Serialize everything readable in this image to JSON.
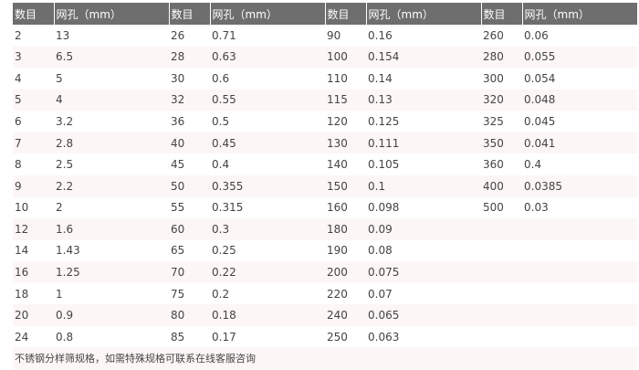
{
  "headers": [
    "数目",
    "网孔（mm）",
    "数目",
    "网孔（mm）",
    "数目",
    "网孔（mm）",
    "数目",
    "网孔（mm）"
  ],
  "rows": [
    [
      "2",
      "13",
      "26",
      "0.71",
      "90",
      "0.16",
      "260",
      "0.06"
    ],
    [
      "3",
      "6.5",
      "28",
      "0.63",
      "100",
      "0.154",
      "280",
      "0.055"
    ],
    [
      "4",
      "5",
      "30",
      "0.6",
      "110",
      "0.14",
      "300",
      "0.054"
    ],
    [
      "5",
      "4",
      "32",
      "0.55",
      "115",
      "0.13",
      "320",
      "0.048"
    ],
    [
      "6",
      "3.2",
      "36",
      "0.5",
      "120",
      "0.125",
      "325",
      "0.045"
    ],
    [
      "7",
      "2.8",
      "40",
      "0.45",
      "130",
      "0.111",
      "350",
      "0.041"
    ],
    [
      "8",
      "2.5",
      "45",
      "0.4",
      "140",
      "0.105",
      "360",
      "0.4"
    ],
    [
      "9",
      "2.2",
      "50",
      "0.355",
      "150",
      "0.1",
      "400",
      "0.0385"
    ],
    [
      "10",
      "2",
      "55",
      "0.315",
      "160",
      "0.098",
      "500",
      "0.03"
    ],
    [
      "12",
      "1.6",
      "60",
      "0.3",
      "180",
      "0.09",
      "",
      ""
    ],
    [
      "14",
      "1.43",
      "65",
      "0.25",
      "190",
      "0.08",
      "",
      ""
    ],
    [
      "16",
      "1.25",
      "70",
      "0.22",
      "200",
      "0.075",
      "",
      ""
    ],
    [
      "18",
      "1",
      "75",
      "0.2",
      "220",
      "0.07",
      "",
      ""
    ],
    [
      "20",
      "0.9",
      "80",
      "0.18",
      "240",
      "0.065",
      "",
      ""
    ],
    [
      "24",
      "0.8",
      "85",
      "0.17",
      "250",
      "0.063",
      "",
      ""
    ]
  ],
  "footer": "不锈钢分样筛规格，如需特殊规格可联系在线客服咨询",
  "colors": {
    "header_bg": "#6e6e6e",
    "stripe": "#fdf6f6"
  }
}
